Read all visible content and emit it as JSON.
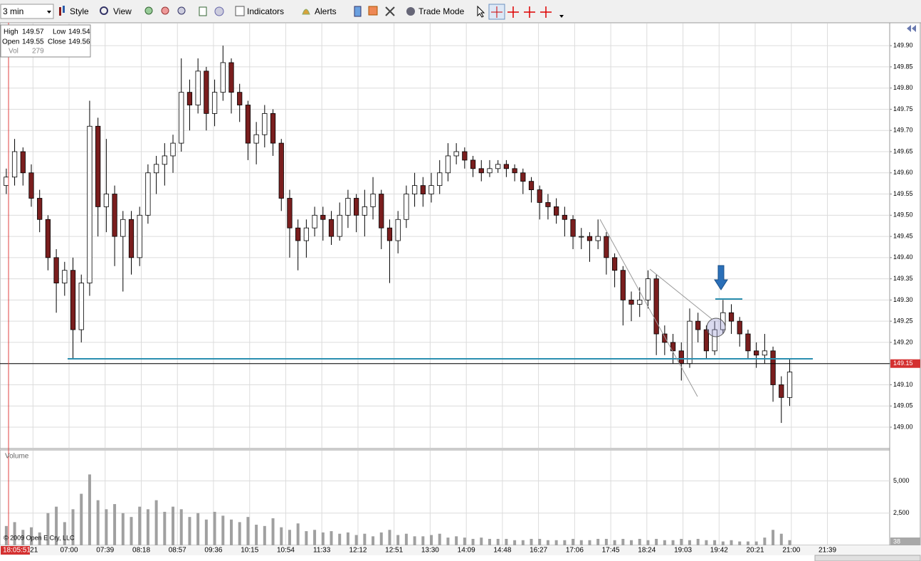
{
  "toolbar": {
    "interval": "3 min",
    "buttons": [
      "Style",
      "View",
      "Indicators",
      "Alerts",
      "Trade Mode"
    ]
  },
  "info": {
    "items": [
      {
        "label": "High",
        "value": 149.57
      },
      {
        "label": "Low",
        "value": 149.54
      },
      {
        "label": "Open",
        "value": 149.55
      },
      {
        "label": "Close",
        "value": 149.56
      },
      {
        "label": "Vol",
        "value": 279
      }
    ]
  },
  "chart_data": {
    "type": "candlestick",
    "xlim": [
      0,
      106.5
    ],
    "xticks": [
      {
        "value": 3.7,
        "label": ":21"
      },
      {
        "value": 8.03,
        "label": "07:00"
      },
      {
        "value": 12.36,
        "label": "07:39"
      },
      {
        "value": 16.7,
        "label": "08:18"
      },
      {
        "value": 21.03,
        "label": "08:57"
      },
      {
        "value": 25.36,
        "label": "09:36"
      },
      {
        "value": 29.7,
        "label": "10:15"
      },
      {
        "value": 34.03,
        "label": "10:54"
      },
      {
        "value": 38.36,
        "label": "11:33"
      },
      {
        "value": 42.7,
        "label": "12:12"
      },
      {
        "value": 47.03,
        "label": "12:51"
      },
      {
        "value": 51.36,
        "label": "13:30"
      },
      {
        "value": 55.7,
        "label": "14:09"
      },
      {
        "value": 60.03,
        "label": "14:48"
      },
      {
        "value": 64.36,
        "label": "16:27"
      },
      {
        "value": 68.7,
        "label": "17:06"
      },
      {
        "value": 73.03,
        "label": "17:45"
      },
      {
        "value": 77.36,
        "label": "18:24"
      },
      {
        "value": 81.7,
        "label": "19:03"
      },
      {
        "value": 86.03,
        "label": "19:42"
      },
      {
        "value": 90.36,
        "label": "20:21"
      },
      {
        "value": 94.7,
        "label": "21:00"
      },
      {
        "value": 99.03,
        "label": "21:39"
      }
    ],
    "ylim": [
      148.953,
      149.954
    ],
    "yticks": [
      {
        "value": 149.0,
        "label": "149.00"
      },
      149.05,
      {
        "value": 149.1,
        "label": "149.10"
      },
      149.15,
      {
        "value": 149.2,
        "label": "149.20"
      },
      149.25,
      {
        "value": 149.3,
        "label": "149.30"
      },
      149.35,
      {
        "value": 149.4,
        "label": "149.40"
      },
      149.45,
      {
        "value": 149.5,
        "label": "149.50"
      },
      149.55,
      {
        "value": 149.6,
        "label": "149.60"
      },
      149.65,
      {
        "value": 149.7,
        "label": "149.70"
      },
      149.75,
      {
        "value": 149.8,
        "label": "149.80"
      },
      149.85,
      {
        "value": 149.9,
        "label": "149.90"
      }
    ],
    "grid": true,
    "up_color": "#ffffff",
    "down_color": "#7a1e1e",
    "last_price": 149.15,
    "open": [
      149.57,
      149.59,
      149.65,
      149.6,
      149.54,
      149.49,
      149.4,
      149.34,
      149.37,
      149.23,
      149.34,
      149.71,
      149.52,
      149.55,
      149.45,
      149.49,
      149.4,
      149.5,
      149.6,
      149.62,
      149.64,
      149.67,
      149.79,
      149.76,
      149.84,
      149.74,
      149.79,
      149.86,
      149.79,
      149.76,
      149.67,
      149.69,
      149.74,
      149.67,
      149.54,
      149.47,
      149.44,
      149.47,
      149.5,
      149.49,
      149.45,
      149.5,
      149.54,
      149.5,
      149.52,
      149.55,
      149.47,
      149.44,
      149.49,
      149.55,
      149.57,
      149.55,
      149.57,
      149.6,
      149.64,
      149.65,
      149.63,
      149.61,
      149.6,
      149.61,
      149.62,
      149.61,
      149.6,
      149.58,
      149.56,
      149.53,
      149.52,
      149.5,
      149.49,
      149.45,
      149.45,
      149.44,
      149.45,
      149.4,
      149.37,
      149.3,
      149.29,
      149.3,
      149.35,
      149.22,
      149.2,
      149.18,
      149.15,
      149.25,
      149.23,
      149.18,
      149.23,
      149.27,
      149.25,
      149.22,
      149.18,
      149.17,
      149.18,
      149.1,
      149.07
    ],
    "high": [
      149.61,
      149.68,
      149.66,
      149.62,
      149.56,
      149.5,
      149.42,
      149.39,
      149.4,
      149.36,
      149.77,
      149.73,
      149.68,
      149.57,
      149.51,
      149.51,
      149.52,
      149.62,
      149.64,
      149.67,
      149.69,
      149.87,
      149.82,
      149.87,
      149.85,
      149.82,
      149.9,
      149.87,
      149.81,
      149.77,
      149.72,
      149.76,
      149.75,
      149.68,
      149.56,
      149.49,
      149.49,
      149.52,
      149.52,
      149.51,
      149.53,
      149.56,
      149.55,
      149.56,
      149.59,
      149.56,
      149.49,
      149.51,
      149.57,
      149.6,
      149.59,
      149.6,
      149.63,
      149.67,
      149.67,
      149.66,
      149.64,
      149.63,
      149.63,
      149.63,
      149.63,
      149.62,
      149.61,
      149.59,
      149.57,
      149.55,
      149.54,
      149.52,
      149.5,
      149.47,
      149.46,
      149.49,
      149.46,
      149.41,
      149.38,
      149.32,
      149.33,
      149.37,
      149.36,
      149.24,
      149.22,
      149.2,
      149.28,
      149.27,
      149.24,
      149.25,
      149.3,
      149.29,
      149.26,
      149.23,
      149.2,
      149.22,
      149.19,
      149.12,
      149.16
    ],
    "low": [
      149.55,
      149.57,
      149.57,
      149.52,
      149.46,
      149.37,
      149.27,
      149.31,
      149.16,
      149.2,
      149.31,
      149.45,
      149.46,
      149.38,
      149.32,
      149.36,
      149.38,
      149.48,
      149.55,
      149.57,
      149.6,
      149.65,
      149.7,
      149.74,
      149.7,
      149.71,
      149.77,
      149.74,
      149.72,
      149.63,
      149.62,
      149.66,
      149.64,
      149.51,
      149.4,
      149.37,
      149.4,
      149.45,
      149.44,
      149.43,
      149.44,
      149.47,
      149.46,
      149.45,
      149.49,
      149.42,
      149.34,
      149.41,
      149.47,
      149.52,
      149.52,
      149.53,
      149.55,
      149.58,
      149.62,
      149.61,
      149.59,
      149.58,
      149.59,
      149.6,
      149.59,
      149.58,
      149.55,
      149.53,
      149.49,
      149.49,
      149.48,
      149.45,
      149.42,
      149.42,
      149.39,
      149.42,
      149.36,
      149.33,
      149.24,
      149.25,
      149.26,
      149.28,
      149.17,
      149.17,
      149.15,
      149.11,
      149.14,
      149.2,
      149.16,
      149.17,
      149.22,
      149.22,
      149.19,
      149.16,
      149.14,
      149.15,
      149.06,
      149.01,
      149.05
    ],
    "close": [
      149.59,
      149.65,
      149.6,
      149.54,
      149.49,
      149.4,
      149.34,
      149.37,
      149.23,
      149.34,
      149.71,
      149.52,
      149.55,
      149.45,
      149.49,
      149.4,
      149.5,
      149.6,
      149.62,
      149.64,
      149.67,
      149.79,
      149.76,
      149.84,
      149.74,
      149.79,
      149.86,
      149.79,
      149.76,
      149.67,
      149.69,
      149.74,
      149.67,
      149.54,
      149.47,
      149.44,
      149.47,
      149.5,
      149.49,
      149.45,
      149.5,
      149.54,
      149.5,
      149.52,
      149.55,
      149.47,
      149.44,
      149.49,
      149.55,
      149.57,
      149.55,
      149.57,
      149.6,
      149.64,
      149.65,
      149.63,
      149.61,
      149.6,
      149.61,
      149.62,
      149.61,
      149.6,
      149.58,
      149.56,
      149.53,
      149.52,
      149.5,
      149.49,
      149.45,
      149.45,
      149.44,
      149.45,
      149.4,
      149.37,
      149.3,
      149.29,
      149.3,
      149.35,
      149.22,
      149.2,
      149.18,
      149.15,
      149.25,
      149.23,
      149.18,
      149.23,
      149.27,
      149.25,
      149.22,
      149.18,
      149.17,
      149.18,
      149.1,
      149.07,
      149.13
    ],
    "volume": {
      "title": "Volume",
      "color": "#a0a0a0",
      "ylim": [
        0,
        7400
      ],
      "yticks": [
        {
          "value": 5000,
          "label": "5,000"
        },
        {
          "value": 2500,
          "label": "2,500"
        }
      ],
      "current": 38,
      "values": [
        1500,
        1800,
        1200,
        1400,
        1000,
        2500,
        3000,
        1800,
        2800,
        4000,
        5500,
        3500,
        2800,
        3200,
        2500,
        2200,
        3000,
        2800,
        3500,
        2600,
        3000,
        2800,
        2200,
        2500,
        2000,
        2600,
        2300,
        2000,
        1800,
        2200,
        1600,
        1500,
        2100,
        1400,
        1200,
        1700,
        1100,
        1200,
        1000,
        1100,
        900,
        1000,
        800,
        900,
        700,
        1000,
        1200,
        800,
        900,
        700,
        700,
        800,
        900,
        600,
        700,
        600,
        500,
        600,
        500,
        500,
        500,
        400,
        400,
        500,
        500,
        400,
        400,
        400,
        500,
        400,
        400,
        500,
        500,
        400,
        500,
        400,
        500,
        400,
        500,
        400,
        400,
        500,
        400,
        500,
        400,
        400,
        300,
        400,
        300,
        300,
        300,
        600,
        1200,
        900,
        400
      ]
    }
  },
  "copyright": "© 2009 Open E Cry, LLC",
  "clock": "18:05:51"
}
